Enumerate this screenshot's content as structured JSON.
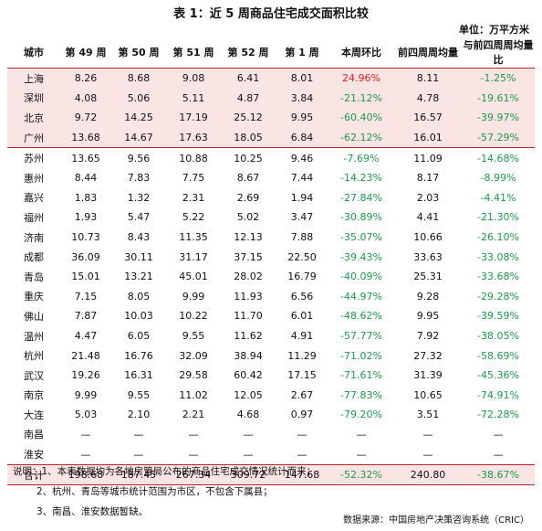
{
  "title": "表 1：近 5 周商品住宅成交面积比较",
  "unit": "单位：万平方米",
  "headers": [
    "城市",
    "第 49 周",
    "第 50 周",
    "第 51 周",
    "第 52 周",
    "第 1 周",
    "本周环比",
    "前四周周均量",
    "与前四周周均量比"
  ],
  "rows": [
    {
      "city": "上海",
      "w49": "8.26",
      "w50": "8.68",
      "w51": "9.08",
      "w52": "6.41",
      "w1": "8.01",
      "wow": "24.96%",
      "avg4": "8.11",
      "vsavg": "-1.25%"
    },
    {
      "city": "深圳",
      "w49": "4.08",
      "w50": "5.06",
      "w51": "5.11",
      "w52": "4.87",
      "w1": "3.84",
      "wow": "-21.12%",
      "avg4": "4.78",
      "vsavg": "-19.61%"
    },
    {
      "city": "北京",
      "w49": "9.72",
      "w50": "14.25",
      "w51": "17.19",
      "w52": "25.12",
      "w1": "9.95",
      "wow": "-60.40%",
      "avg4": "16.57",
      "vsavg": "-39.97%"
    },
    {
      "city": "广州",
      "w49": "13.68",
      "w50": "14.67",
      "w51": "17.63",
      "w52": "18.05",
      "w1": "6.84",
      "wow": "-62.12%",
      "avg4": "16.01",
      "vsavg": "-57.29%"
    },
    {
      "city": "苏州",
      "w49": "13.65",
      "w50": "9.56",
      "w51": "10.88",
      "w52": "10.25",
      "w1": "9.46",
      "wow": "-7.69%",
      "avg4": "11.09",
      "vsavg": "-14.68%"
    },
    {
      "city": "惠州",
      "w49": "8.44",
      "w50": "7.83",
      "w51": "7.75",
      "w52": "8.67",
      "w1": "7.44",
      "wow": "-14.23%",
      "avg4": "8.17",
      "vsavg": "-8.99%"
    },
    {
      "city": "嘉兴",
      "w49": "1.83",
      "w50": "1.32",
      "w51": "2.31",
      "w52": "2.69",
      "w1": "1.94",
      "wow": "-27.84%",
      "avg4": "2.03",
      "vsavg": "-4.41%"
    },
    {
      "city": "福州",
      "w49": "1.93",
      "w50": "5.47",
      "w51": "5.22",
      "w52": "5.02",
      "w1": "3.47",
      "wow": "-30.89%",
      "avg4": "4.41",
      "vsavg": "-21.30%"
    },
    {
      "city": "济南",
      "w49": "10.73",
      "w50": "8.43",
      "w51": "11.35",
      "w52": "12.13",
      "w1": "7.88",
      "wow": "-35.07%",
      "avg4": "10.66",
      "vsavg": "-26.10%"
    },
    {
      "city": "成都",
      "w49": "36.09",
      "w50": "30.11",
      "w51": "31.17",
      "w52": "37.15",
      "w1": "22.50",
      "wow": "-39.43%",
      "avg4": "33.63",
      "vsavg": "-33.08%"
    },
    {
      "city": "青岛",
      "w49": "15.01",
      "w50": "13.21",
      "w51": "45.01",
      "w52": "28.02",
      "w1": "16.79",
      "wow": "-40.09%",
      "avg4": "25.31",
      "vsavg": "-33.68%"
    },
    {
      "city": "重庆",
      "w49": "7.15",
      "w50": "8.05",
      "w51": "9.99",
      "w52": "11.93",
      "w1": "6.56",
      "wow": "-44.97%",
      "avg4": "9.28",
      "vsavg": "-29.28%"
    },
    {
      "city": "佛山",
      "w49": "7.87",
      "w50": "10.03",
      "w51": "10.22",
      "w52": "11.70",
      "w1": "6.01",
      "wow": "-48.62%",
      "avg4": "9.95",
      "vsavg": "-39.59%"
    },
    {
      "city": "温州",
      "w49": "4.47",
      "w50": "6.05",
      "w51": "9.55",
      "w52": "11.62",
      "w1": "4.91",
      "wow": "-57.77%",
      "avg4": "7.92",
      "vsavg": "-38.05%"
    },
    {
      "city": "杭州",
      "w49": "21.48",
      "w50": "16.76",
      "w51": "32.09",
      "w52": "38.94",
      "w1": "11.29",
      "wow": "-71.02%",
      "avg4": "27.32",
      "vsavg": "-58.69%"
    },
    {
      "city": "武汉",
      "w49": "19.26",
      "w50": "16.31",
      "w51": "29.58",
      "w52": "60.42",
      "w1": "17.15",
      "wow": "-71.61%",
      "avg4": "31.39",
      "vsavg": "-45.36%"
    },
    {
      "city": "南京",
      "w49": "9.99",
      "w50": "9.55",
      "w51": "11.02",
      "w52": "12.05",
      "w1": "2.67",
      "wow": "-77.83%",
      "avg4": "10.65",
      "vsavg": "-74.91%"
    },
    {
      "city": "大连",
      "w49": "5.03",
      "w50": "2.10",
      "w51": "2.21",
      "w52": "4.68",
      "w1": "0.97",
      "wow": "-79.20%",
      "avg4": "3.51",
      "vsavg": "-72.28%"
    },
    {
      "city": "南昌",
      "w49": "—",
      "w50": "—",
      "w51": "—",
      "w52": "—",
      "w1": "—",
      "wow": "—",
      "avg4": "—",
      "vsavg": "—"
    },
    {
      "city": "淮安",
      "w49": "—",
      "w50": "—",
      "w51": "—",
      "w52": "—",
      "w1": "—",
      "wow": "—",
      "avg4": "—",
      "vsavg": "—"
    }
  ],
  "total": {
    "city": "合计",
    "w49": "198.68",
    "w50": "187.45",
    "w51": "267.34",
    "w52": "309.72",
    "w1": "147.68",
    "wow": "-52.32%",
    "avg4": "240.80",
    "vsavg": "-38.67%"
  },
  "notes": {
    "label": "说明：",
    "items": [
      "1、本表数据均为各地房管局公布的商品住宅成交情况统计而来；",
      "2、杭州、青岛等城市统计范围为市区，不包含下属县；",
      "3、南昌、淮安数据暂缺。"
    ]
  },
  "source": "数据来源：中国房地产决策咨询系统（CRIC）",
  "colors": {
    "positive": "#e0201b",
    "negative": "#1f9a4a",
    "row_highlight": "#fbe4e4",
    "rule": "#b8232f"
  }
}
